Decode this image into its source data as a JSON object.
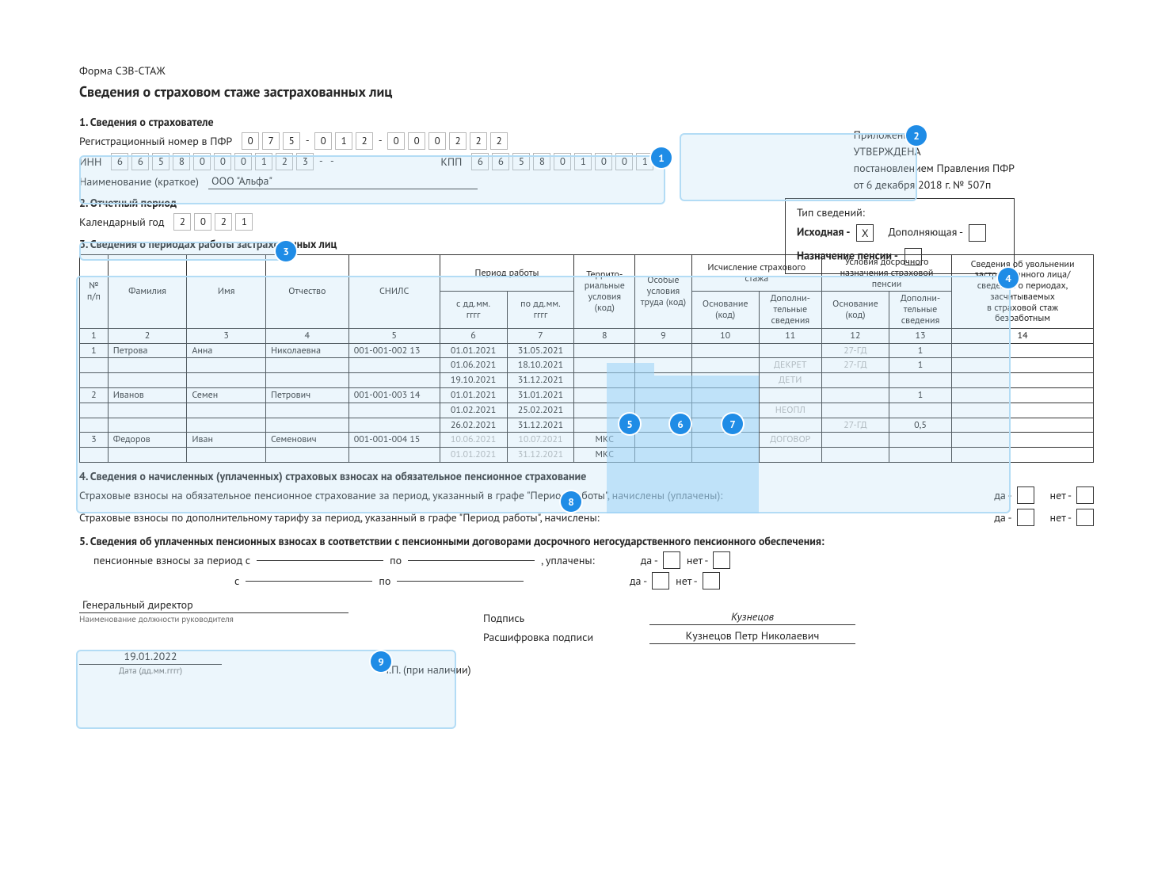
{
  "colors": {
    "accent": "#1f8ce6",
    "hl_bg": "rgba(179,220,245,0.25)",
    "hl_border": "#b3dcf5",
    "gray_text": "#b0b0b0"
  },
  "header": {
    "form_code": "Форма СЗВ-СТАЖ",
    "title": "Сведения о страховом стаже застрахованных лиц",
    "appendix": "Приложение 1",
    "approved": "УТВЕРЖДЕНА",
    "decree1": "постановлением Правления ПФР",
    "decree2": "от 6 декабря 2018 г. № 507п"
  },
  "s1": {
    "title": "1. Сведения о страхователе",
    "reg_label": "Регистрационный номер в ПФР",
    "reg": [
      "0",
      "7",
      "5",
      "-",
      "0",
      "1",
      "2",
      "-",
      "0",
      "0",
      "0",
      "2",
      "2",
      "2"
    ],
    "inn_label": "ИНН",
    "inn": [
      "6",
      "6",
      "5",
      "8",
      "0",
      "0",
      "0",
      "1",
      "2",
      "3",
      "-",
      "-"
    ],
    "kpp_label": "КПП",
    "kpp": [
      "6",
      "6",
      "5",
      "8",
      "0",
      "1",
      "0",
      "0",
      "1"
    ],
    "name_label": "Наименование (краткое)",
    "name": "ООО \"Альфа\""
  },
  "typebox": {
    "title": "Тип сведений:",
    "r1a": "Исходная -",
    "r1a_val": "Х",
    "r1b": "Дополняющая -",
    "r1b_val": "",
    "r2": "Назначение пенсии -",
    "r2_val": ""
  },
  "s2": {
    "title": "2. Отчетный период",
    "label": "Календарный год",
    "year": [
      "2",
      "0",
      "2",
      "1"
    ]
  },
  "s3": {
    "title": "3. Сведения о периодах работы застрахованных лиц",
    "cols": {
      "np": "№\nп/п",
      "fam": "Фамилия",
      "name": "Имя",
      "patr": "Отчество",
      "snils": "СНИЛС",
      "period": "Период работы",
      "from": "с дд.мм.\nгггг",
      "to": "по дд.мм.\nгггг",
      "terr": "Террито-\nриальные\nусловия\n(код)",
      "spec": "Особые\nусловия\nтруда (код)",
      "calc": "Исчисление страхового\nстажа",
      "calc_base": "Основание\n(код)",
      "calc_add": "Дополни-\nтельные\nсведения",
      "early": "Условия досрочного\nназначения страховой пенсии",
      "early_base": "Основание\n(код)",
      "early_add": "Дополни-\nтельные\nсведения",
      "dismiss": "Сведения об увольнении\nзастрахованного лица/\nсведения о периодах,\nзасчитываемых\nв страховой стаж\nбезработным"
    },
    "numrow": [
      "1",
      "2",
      "3",
      "4",
      "5",
      "6",
      "7",
      "8",
      "9",
      "10",
      "11",
      "12",
      "13",
      "14"
    ],
    "rows": [
      {
        "n": "1",
        "f": "Петрова",
        "i": "Анна",
        "o": "Николаевна",
        "s": "001-001-002 13",
        "from": "01.01.2021",
        "to": "31.05.2021",
        "t": "",
        "sp": "",
        "cb": "",
        "ca": "",
        "eb": "27-ГД",
        "ea": "1",
        "d": ""
      },
      {
        "n": "",
        "f": "",
        "i": "",
        "o": "",
        "s": "",
        "from": "01.06.2021",
        "to": "18.10.2021",
        "t": "",
        "sp": "",
        "cb": "",
        "ca": "ДЕКРЕТ",
        "eb": "27-ГД",
        "ea": "1",
        "d": ""
      },
      {
        "n": "",
        "f": "",
        "i": "",
        "o": "",
        "s": "",
        "from": "19.10.2021",
        "to": "31.12.2021",
        "t": "",
        "sp": "",
        "cb": "",
        "ca": "ДЕТИ",
        "eb": "",
        "ea": "",
        "d": ""
      },
      {
        "n": "2",
        "f": "Иванов",
        "i": "Семен",
        "o": "Петрович",
        "s": "001-001-003 14",
        "from": "01.01.2021",
        "to": "31.01.2021",
        "t": "",
        "sp": "",
        "cb": "",
        "ca": "",
        "eb": "",
        "ea": "1",
        "d": ""
      },
      {
        "n": "",
        "f": "",
        "i": "",
        "o": "",
        "s": "",
        "from": "01.02.2021",
        "to": "25.02.2021",
        "t": "",
        "sp": "",
        "cb": "",
        "ca": "НЕОПЛ",
        "eb": "",
        "ea": "",
        "d": ""
      },
      {
        "n": "",
        "f": "",
        "i": "",
        "o": "",
        "s": "",
        "from": "26.02.2021",
        "to": "31.12.2021",
        "t": "",
        "sp": "",
        "cb": "",
        "ca": "",
        "eb": "27-ГД",
        "ea": "0,5",
        "d": ""
      },
      {
        "n": "3",
        "f": "Федоров",
        "i": "Иван",
        "o": "Семенович",
        "s": "001-001-004 15",
        "from": "10.06.2021",
        "to": "10.07.2021",
        "t": "МКС",
        "sp": "",
        "cb": "",
        "ca": "ДОГОВОР",
        "eb": "",
        "ea": "",
        "d": "",
        "gray_dates": true
      },
      {
        "n": "",
        "f": "",
        "i": "",
        "o": "",
        "s": "",
        "from": "01.01.2021",
        "to": "31.12.2021",
        "t": "МКС",
        "sp": "",
        "cb": "",
        "ca": "",
        "eb": "",
        "ea": "",
        "d": "",
        "gray_dates": true
      }
    ]
  },
  "s4": {
    "title": "4. Сведения о начисленных (уплаченных) страховых взносах на обязательное пенсионное страхование",
    "line1": "Страховые взносы на обязательное пенсионное страхование за период, указанный в графе \"Период работы\", начислены (уплачены):",
    "line2": "Страховые взносы по дополнительному тарифу за период, указанный в графе \"Период работы\", начислены:",
    "yes": "да -",
    "no": "нет -"
  },
  "s5": {
    "title": "5. Сведения об уплаченных пенсионных взносах в соответствии с пенсионными договорами досрочного негосударственного пенсионного обеспечения:",
    "line1a": "пенсионные взносы за период с",
    "line1b": "по",
    "line1c": ", уплачены:",
    "line2a": "с",
    "line2b": "по",
    "yes": "да -",
    "no": "нет -"
  },
  "sig": {
    "position": "Генеральный директор",
    "position_lbl": "Наименование должности руководителя",
    "sign_lbl": "Подпись",
    "sign_val": "Кузнецов",
    "decode_lbl": "Расшифровка подписи",
    "decode_val": "Кузнецов Петр Николаевич",
    "date": "19.01.2022",
    "date_lbl": "Дата (дд.мм.гггг)",
    "mp": "М.П. (при наличии)"
  },
  "callouts": {
    "1": "1",
    "2": "2",
    "3": "3",
    "4": "4",
    "5": "5",
    "6": "6",
    "7": "7",
    "8": "8",
    "9": "9"
  }
}
